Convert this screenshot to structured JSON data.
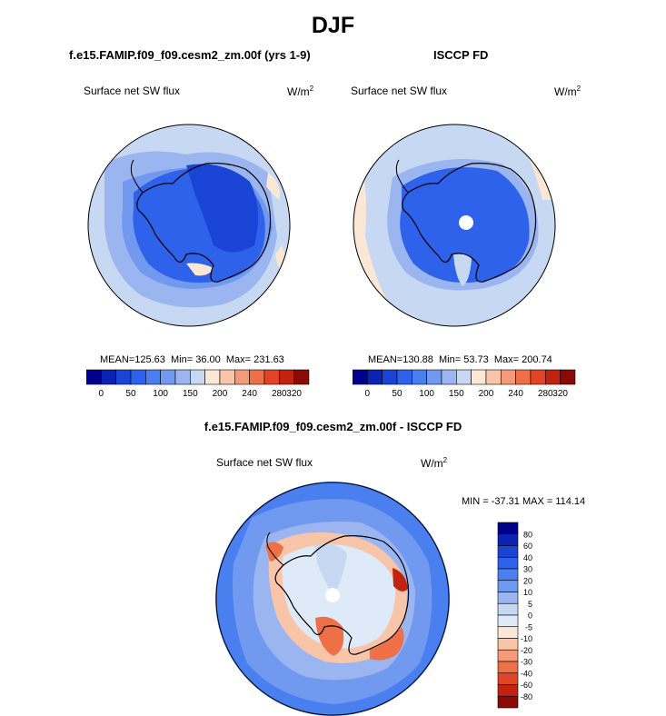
{
  "figure": {
    "title": "DJF",
    "colors": {
      "abs_palette": [
        "#00008a",
        "#0a23b4",
        "#1a44d6",
        "#2f62ea",
        "#4a7ff0",
        "#7199f0",
        "#9ab5f0",
        "#c6d8f2",
        "#fbe7d6",
        "#f8c5a8",
        "#f39a78",
        "#ee7047",
        "#e04527",
        "#c2230e",
        "#8a0b05"
      ],
      "diff_palette": [
        "#00008a",
        "#0a23b4",
        "#1a44d6",
        "#2f62ea",
        "#4a7ff0",
        "#7199f0",
        "#9ab5f0",
        "#c6d8f2",
        "#dfeaf8",
        "#fbe7d6",
        "#f8c5a8",
        "#f39a78",
        "#ee7047",
        "#e04527",
        "#c2230e",
        "#8a0b05"
      ]
    }
  },
  "chart_data": [
    {
      "type": "heatmap",
      "projection": "south-polar-stereographic",
      "title": "f.e15.FAMIP.f09_f09.cesm2_zm.00f (yrs 1-9)",
      "left_label": "Surface net SW flux",
      "units_base": "W/m",
      "units_exp": "2",
      "stats": {
        "mean_label": "MEAN=",
        "mean": "125.63",
        "min_label": "Min=",
        "min": "36.00",
        "max_label": "Max=",
        "max": "231.63"
      },
      "colorbar": {
        "orientation": "horizontal",
        "tick_labels": [
          "0",
          "50",
          "100",
          "150",
          "200",
          "240",
          "280",
          "320"
        ]
      }
    },
    {
      "type": "heatmap",
      "projection": "south-polar-stereographic",
      "title": "ISCCP FD",
      "left_label": "Surface net SW flux",
      "units_base": "W/m",
      "units_exp": "2",
      "stats": {
        "mean_label": "MEAN=",
        "mean": "130.88",
        "min_label": "Min=",
        "min": "53.73",
        "max_label": "Max=",
        "max": "200.74"
      },
      "colorbar": {
        "orientation": "horizontal",
        "tick_labels": [
          "0",
          "50",
          "100",
          "150",
          "200",
          "240",
          "280",
          "320"
        ]
      }
    },
    {
      "type": "heatmap",
      "projection": "south-polar-stereographic",
      "title": "f.e15.FAMIP.f09_f09.cesm2_zm.00f - ISCCP FD",
      "left_label": "Surface net SW flux",
      "units_base": "W/m",
      "units_exp": "2",
      "stats_text": "MIN = -37.31 MAX = 114.14",
      "colorbar": {
        "orientation": "vertical",
        "tick_labels": [
          "80",
          "60",
          "40",
          "30",
          "20",
          "10",
          "5",
          "0",
          "-5",
          "-10",
          "-20",
          "-30",
          "-40",
          "-60",
          "-80"
        ]
      }
    }
  ]
}
